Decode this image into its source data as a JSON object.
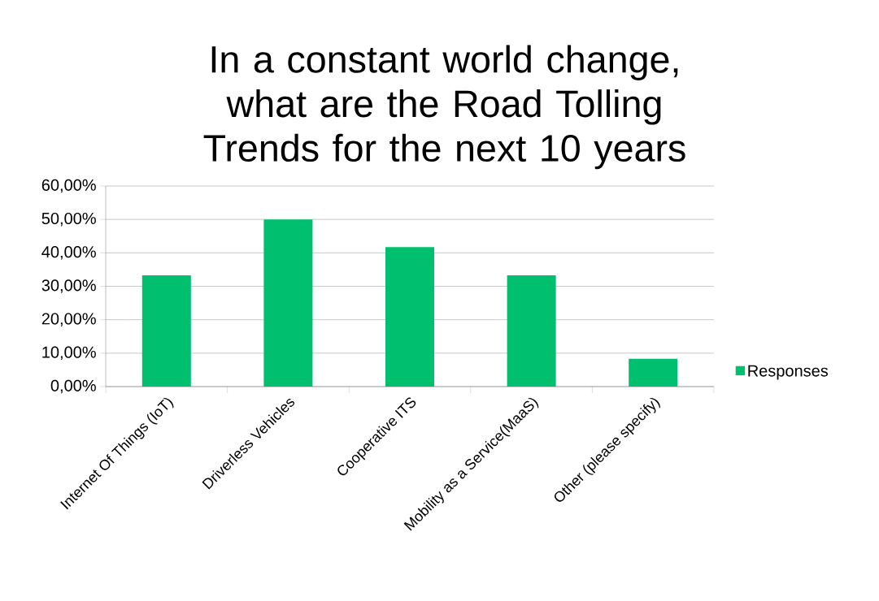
{
  "chart_data": {
    "type": "bar",
    "title": "In a constant world change, what are the Road Tolling Trends for the next 10 years",
    "categories": [
      "Internet Of Things (IoT)",
      "Driverless Vehicles",
      "Cooperative ITS",
      "Mobility as a Service(MaaS)",
      "Other (please specify)"
    ],
    "series": [
      {
        "name": "Responses",
        "color": "#00bf6f",
        "values": [
          33.3,
          50,
          41.7,
          33.3,
          8.3
        ]
      }
    ],
    "ylim": [
      0,
      60
    ],
    "yticks": [
      {
        "value": 0,
        "label": "0,00%"
      },
      {
        "value": 10,
        "label": "10,00%"
      },
      {
        "value": 20,
        "label": "20,00%"
      },
      {
        "value": 30,
        "label": "30,00%"
      },
      {
        "value": 40,
        "label": "40,00%"
      },
      {
        "value": 50,
        "label": "50,00%"
      },
      {
        "value": 60,
        "label": "60,00%"
      }
    ],
    "grid": "y",
    "legend": "right"
  }
}
